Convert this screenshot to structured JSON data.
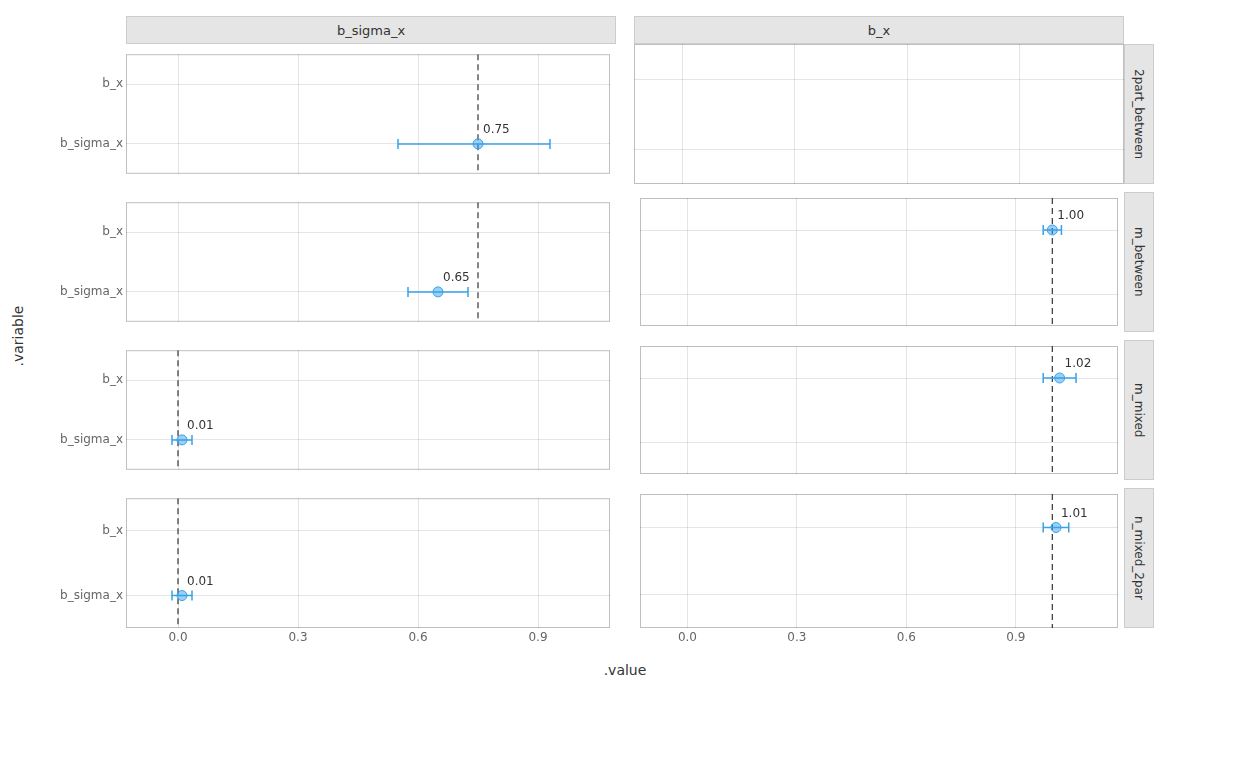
{
  "chart_data": {
    "type": "scatter",
    "x_label": ".value",
    "y_label": ".variable",
    "col_labels": [
      "b_sigma_x",
      "b_x"
    ],
    "row_labels": [
      "2part_between",
      "m_between",
      "m_mixed",
      "n_mixed_2par"
    ],
    "categories": [
      "b_x",
      "b_sigma_x"
    ],
    "grid": true,
    "data_labels": true,
    "panels": [
      {
        "xlim": [
          -0.13,
          1.08
        ],
        "xticks": [
          {
            "value": 0.0,
            "label": "0.0"
          },
          0.3,
          0.6,
          0.9
        ],
        "values": [
          null,
          0.75
        ],
        "error_low": [
          null,
          0.55
        ],
        "error_high": [
          null,
          0.93
        ],
        "value_labels": [
          null,
          "0.75"
        ],
        "reference_line": 0.75,
        "tick_labels": "y"
      },
      {
        "xlim": [
          -0.13,
          1.18
        ],
        "xticks": [
          {
            "value": 0.0,
            "label": "0.0"
          },
          0.3,
          0.6,
          0.9
        ],
        "values": [
          null,
          null
        ],
        "error_low": [
          null,
          null
        ],
        "error_high": [
          null,
          null
        ],
        "value_labels": [
          null,
          null
        ],
        "reference_line": null,
        "tick_labels": false
      },
      {
        "xlim": [
          -0.13,
          1.08
        ],
        "xticks": [
          {
            "value": 0.0,
            "label": "0.0"
          },
          0.3,
          0.6,
          0.9
        ],
        "values": [
          null,
          0.65
        ],
        "error_low": [
          null,
          0.575
        ],
        "error_high": [
          null,
          0.725
        ],
        "value_labels": [
          null,
          "0.65"
        ],
        "reference_line": 0.75,
        "tick_labels": "y"
      },
      {
        "xlim": [
          -0.13,
          1.18
        ],
        "xticks": [
          {
            "value": 0.0,
            "label": "0.0"
          },
          0.3,
          0.6,
          0.9
        ],
        "values": [
          1.0,
          null
        ],
        "error_low": [
          0.975,
          null
        ],
        "error_high": [
          1.025,
          null
        ],
        "value_labels": [
          "1.00",
          null
        ],
        "reference_line": 1.0,
        "tick_labels": false
      },
      {
        "xlim": [
          -0.13,
          1.08
        ],
        "xticks": [
          {
            "value": 0.0,
            "label": "0.0"
          },
          0.3,
          0.6,
          0.9
        ],
        "values": [
          null,
          0.01
        ],
        "error_low": [
          null,
          -0.015
        ],
        "error_high": [
          null,
          0.035
        ],
        "value_labels": [
          null,
          "0.01"
        ],
        "reference_line": 0.0,
        "tick_labels": "y"
      },
      {
        "xlim": [
          -0.13,
          1.18
        ],
        "xticks": [
          {
            "value": 0.0,
            "label": "0.0"
          },
          0.3,
          0.6,
          0.9
        ],
        "values": [
          1.02,
          null
        ],
        "error_low": [
          0.975,
          null
        ],
        "error_high": [
          1.065,
          null
        ],
        "value_labels": [
          "1.02",
          null
        ],
        "reference_line": 1.0,
        "tick_labels": false
      },
      {
        "xlim": [
          -0.13,
          1.08
        ],
        "xticks": [
          {
            "value": 0.0,
            "label": "0.0"
          },
          0.3,
          0.6,
          0.9
        ],
        "values": [
          null,
          0.01
        ],
        "error_low": [
          null,
          -0.015
        ],
        "error_high": [
          null,
          0.035
        ],
        "value_labels": [
          null,
          "0.01"
        ],
        "reference_line": 0.0
      },
      {
        "xlim": [
          -0.13,
          1.18
        ],
        "xticks": [
          {
            "value": 0.0,
            "label": "0.0"
          },
          0.3,
          0.6,
          0.9
        ],
        "values": [
          1.01,
          null
        ],
        "error_low": [
          0.975,
          null
        ],
        "error_high": [
          1.045,
          null
        ],
        "value_labels": [
          "1.01",
          null
        ],
        "reference_line": 1.0,
        "tick_labels": "x"
      }
    ]
  }
}
